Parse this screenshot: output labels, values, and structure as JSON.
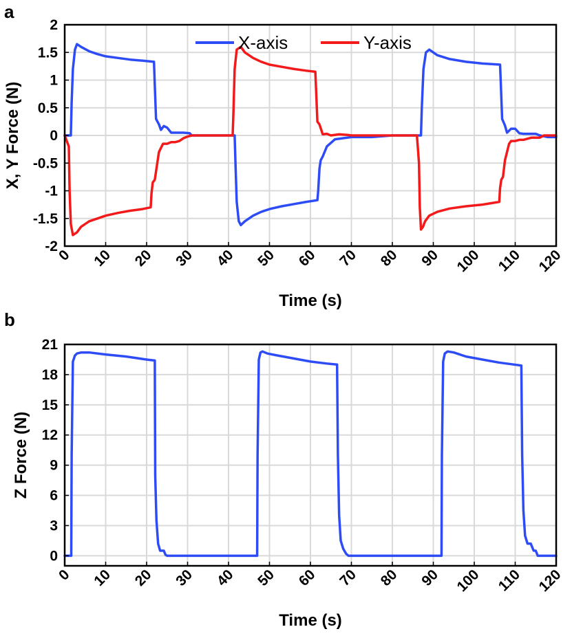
{
  "chart_data": [
    {
      "panel": "a",
      "type": "line",
      "xlabel": "Time (s)",
      "ylabel": "X, Y Force (N)",
      "xlim": [
        0,
        120
      ],
      "ylim": [
        -2,
        2
      ],
      "xticks": [
        "0",
        "10",
        "20",
        "30",
        "40",
        "50",
        "60",
        "70",
        "80",
        "90",
        "100",
        "110",
        "120"
      ],
      "yticks": [
        "-2",
        "-1.5",
        "-1",
        "-0.5",
        "0",
        "0.5",
        "1",
        "1.5",
        "2"
      ],
      "grid": true,
      "legend_position": "top-center",
      "series": [
        {
          "name": "X-axis",
          "color": "#2e4cf5",
          "x": [
            0,
            1.5,
            1.7,
            2.0,
            2.5,
            3.0,
            4,
            6,
            8,
            10,
            13,
            16,
            19,
            21.8,
            22.0,
            22.3,
            23,
            23.5,
            24.2,
            25,
            26,
            29,
            30.5,
            31,
            40,
            41.5,
            41.7,
            42,
            42.5,
            43,
            44,
            46,
            48,
            50,
            53,
            56,
            59,
            61.7,
            61.9,
            62.2,
            62.5,
            63,
            64,
            66,
            68,
            70,
            75,
            80,
            86,
            87.0,
            87.2,
            87.6,
            88.2,
            89,
            91,
            94,
            98,
            102,
            106.3,
            106.5,
            106.8,
            107.5,
            108,
            109,
            110,
            111,
            112,
            115,
            116,
            118,
            120
          ],
          "y": [
            0,
            0,
            0.6,
            1.2,
            1.55,
            1.65,
            1.6,
            1.52,
            1.47,
            1.43,
            1.4,
            1.37,
            1.35,
            1.33,
            0.9,
            0.3,
            0.2,
            0.1,
            0.17,
            0.14,
            0.05,
            0.05,
            0.04,
            0,
            0,
            0,
            -0.5,
            -1.2,
            -1.55,
            -1.62,
            -1.55,
            -1.45,
            -1.38,
            -1.33,
            -1.28,
            -1.24,
            -1.2,
            -1.17,
            -1.0,
            -0.6,
            -0.45,
            -0.38,
            -0.2,
            -0.07,
            -0.05,
            -0.03,
            -0.03,
            0,
            0,
            0,
            0.5,
            1.2,
            1.5,
            1.55,
            1.45,
            1.38,
            1.33,
            1.3,
            1.28,
            0.9,
            0.3,
            0.18,
            0.05,
            0.12,
            0.12,
            0.04,
            0.03,
            0.03,
            0.0,
            -0.03,
            -0.03
          ]
        },
        {
          "name": "Y-axis",
          "color": "#f21a1a",
          "x": [
            0,
            1.0,
            1.2,
            1.5,
            2.0,
            3.0,
            4,
            6,
            8,
            10,
            13,
            16,
            19,
            21.0,
            21.2,
            21.5,
            22,
            22.5,
            23,
            24,
            25,
            26,
            27,
            28,
            29,
            30,
            31,
            40,
            41.0,
            41.2,
            41.5,
            42,
            43,
            44,
            46,
            48,
            50,
            53,
            56,
            59,
            61.2,
            61.4,
            61.7,
            62.2,
            63,
            64,
            65,
            67,
            69,
            70,
            80,
            86,
            86.5,
            86.7,
            87,
            87.5,
            88,
            89,
            91,
            94,
            98,
            102,
            106.1,
            106.3,
            106.6,
            107,
            107.5,
            108,
            108.5,
            109,
            110,
            111,
            112,
            114,
            116,
            117,
            120
          ],
          "y": [
            0,
            -0.2,
            -1.0,
            -1.6,
            -1.8,
            -1.75,
            -1.65,
            -1.55,
            -1.5,
            -1.45,
            -1.4,
            -1.36,
            -1.33,
            -1.3,
            -1.05,
            -0.85,
            -0.8,
            -0.55,
            -0.3,
            -0.15,
            -0.15,
            -0.12,
            -0.12,
            -0.1,
            -0.05,
            -0.02,
            0,
            0,
            0,
            0.4,
            1.2,
            1.55,
            1.6,
            1.5,
            1.4,
            1.33,
            1.28,
            1.24,
            1.2,
            1.17,
            1.15,
            0.8,
            0.25,
            0.2,
            0.02,
            0.03,
            0.0,
            0.02,
            0.01,
            0,
            0,
            0,
            -0.5,
            -1.3,
            -1.7,
            -1.65,
            -1.55,
            -1.45,
            -1.38,
            -1.32,
            -1.28,
            -1.25,
            -1.2,
            -0.95,
            -0.8,
            -0.75,
            -0.45,
            -0.3,
            -0.15,
            -0.1,
            -0.1,
            -0.08,
            -0.08,
            -0.04,
            -0.04,
            0,
            0
          ]
        }
      ]
    },
    {
      "panel": "b",
      "type": "line",
      "xlabel": "Time (s)",
      "ylabel": "Z Force (N)",
      "xlim": [
        0,
        120
      ],
      "ylim": [
        -1,
        21
      ],
      "xticks": [
        "0",
        "10",
        "20",
        "30",
        "40",
        "50",
        "60",
        "70",
        "80",
        "90",
        "100",
        "110",
        "120"
      ],
      "yticks": [
        "0",
        "3",
        "6",
        "9",
        "12",
        "15",
        "18",
        "21"
      ],
      "grid": true,
      "series": [
        {
          "color": "#2e4cf5",
          "x": [
            0,
            1.6,
            1.7,
            2.0,
            2.5,
            3.0,
            4,
            6,
            10,
            15,
            20,
            22.0,
            22.1,
            22.4,
            22.8,
            23.3,
            24.2,
            24.6,
            25,
            30,
            40,
            47,
            47.1,
            47.4,
            47.8,
            48.3,
            49.5,
            52,
            56,
            60,
            64,
            66.5,
            66.7,
            67.0,
            67.4,
            68.0,
            68.7,
            69.3,
            70,
            80,
            92,
            92.1,
            92.4,
            92.8,
            93.5,
            95,
            98,
            102,
            106,
            111.5,
            111.7,
            112.0,
            112.4,
            113.0,
            113.8,
            114.5,
            115.0,
            115.5,
            120
          ],
          "y": [
            0,
            0,
            10,
            19.3,
            19.9,
            20.1,
            20.2,
            20.2,
            20.0,
            19.8,
            19.5,
            19.4,
            8,
            3.5,
            1.2,
            0.5,
            0.5,
            0.1,
            0,
            0,
            0,
            0,
            10,
            19.5,
            20.2,
            20.3,
            20.1,
            19.9,
            19.6,
            19.3,
            19.1,
            19.0,
            10,
            4,
            1.5,
            0.7,
            0.2,
            0.0,
            0,
            0,
            0,
            10,
            19.3,
            20.1,
            20.3,
            20.2,
            19.8,
            19.5,
            19.2,
            18.9,
            10,
            4.5,
            2,
            1.2,
            1.2,
            0.5,
            0.5,
            0,
            0
          ]
        }
      ]
    }
  ]
}
